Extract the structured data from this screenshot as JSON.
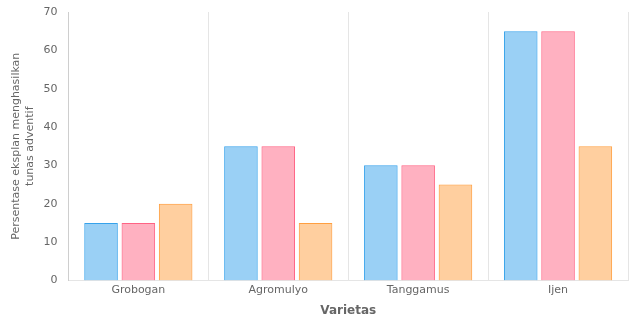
{
  "chart_data": {
    "type": "bar",
    "categories": [
      "Grobogan",
      "Agromulyo",
      "Tanggamus",
      "Ijen"
    ],
    "series": [
      {
        "values": [
          15,
          35,
          30,
          65
        ]
      },
      {
        "values": [
          15,
          35,
          30,
          65
        ]
      },
      {
        "values": [
          20,
          15,
          25,
          35
        ]
      }
    ],
    "xlabel": "Varietas",
    "ylabel": "Persentase eksplan menghasilkan\ntunas adventif",
    "ylim": [
      0,
      70
    ],
    "yticks": [
      0,
      10,
      20,
      30,
      40,
      50,
      60,
      70
    ],
    "grid": false
  }
}
